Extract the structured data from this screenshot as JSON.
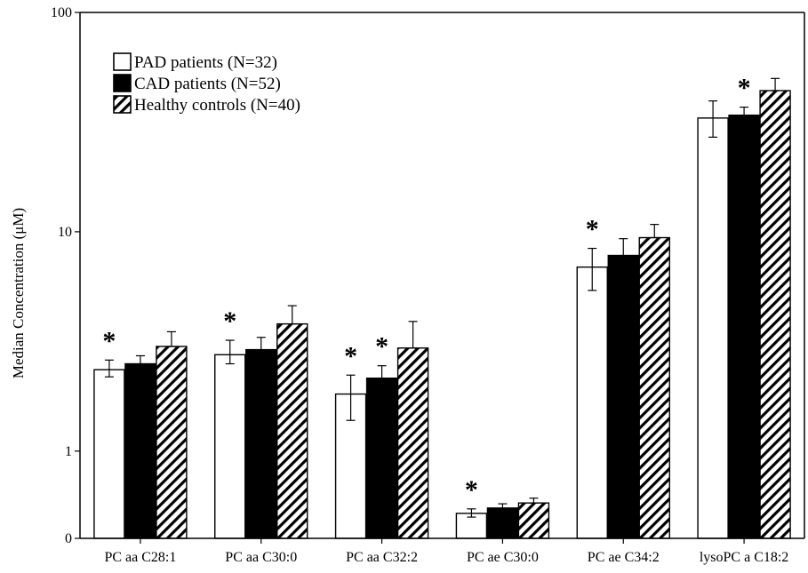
{
  "chart_data": {
    "type": "bar",
    "title": "",
    "xlabel": "",
    "ylabel": "Median Concentration (μM)",
    "y_scale": "log",
    "ylim": [
      0.4,
      100
    ],
    "y_ticks": [
      {
        "value": 0.4,
        "label": "0"
      },
      {
        "value": 1,
        "label": "1"
      },
      {
        "value": 10,
        "label": "10"
      },
      {
        "value": 100,
        "label": "100"
      }
    ],
    "grid": false,
    "legend_position": "top-left",
    "categories": [
      "PC aa C28:1",
      "PC aa C30:0",
      "PC aa C32:2",
      "PC ae C30:0",
      "PC ae C34:2",
      "lysoPC a C18:2"
    ],
    "series": [
      {
        "name": "PAD patients (N=32)",
        "style": "white",
        "values": [
          2.35,
          2.75,
          1.82,
          0.52,
          6.9,
          33
        ],
        "error_low": [
          2.18,
          2.5,
          1.38,
          0.5,
          5.4,
          27
        ],
        "error_high": [
          2.6,
          3.2,
          2.22,
          0.545,
          8.4,
          39.5
        ],
        "significant": [
          true,
          true,
          true,
          true,
          true,
          false
        ]
      },
      {
        "name": "CAD patients (N=52)",
        "style": "black",
        "values": [
          2.5,
          2.9,
          2.15,
          0.55,
          7.8,
          34
        ],
        "error_low": [
          2.38,
          2.65,
          1.8,
          0.53,
          6.6,
          31
        ],
        "error_high": [
          2.72,
          3.3,
          2.45,
          0.575,
          9.3,
          37
        ],
        "significant": [
          false,
          false,
          true,
          false,
          false,
          true
        ]
      },
      {
        "name": "Healthy controls (N=40)",
        "style": "hatched",
        "values": [
          3.0,
          3.8,
          2.95,
          0.58,
          9.4,
          44
        ],
        "error_low": [
          3.0,
          3.8,
          2.95,
          0.58,
          9.4,
          44
        ],
        "error_high": [
          3.5,
          4.6,
          3.9,
          0.61,
          10.8,
          50
        ],
        "significant": [
          false,
          false,
          false,
          false,
          false,
          false
        ]
      }
    ],
    "significance_marker": "*"
  }
}
